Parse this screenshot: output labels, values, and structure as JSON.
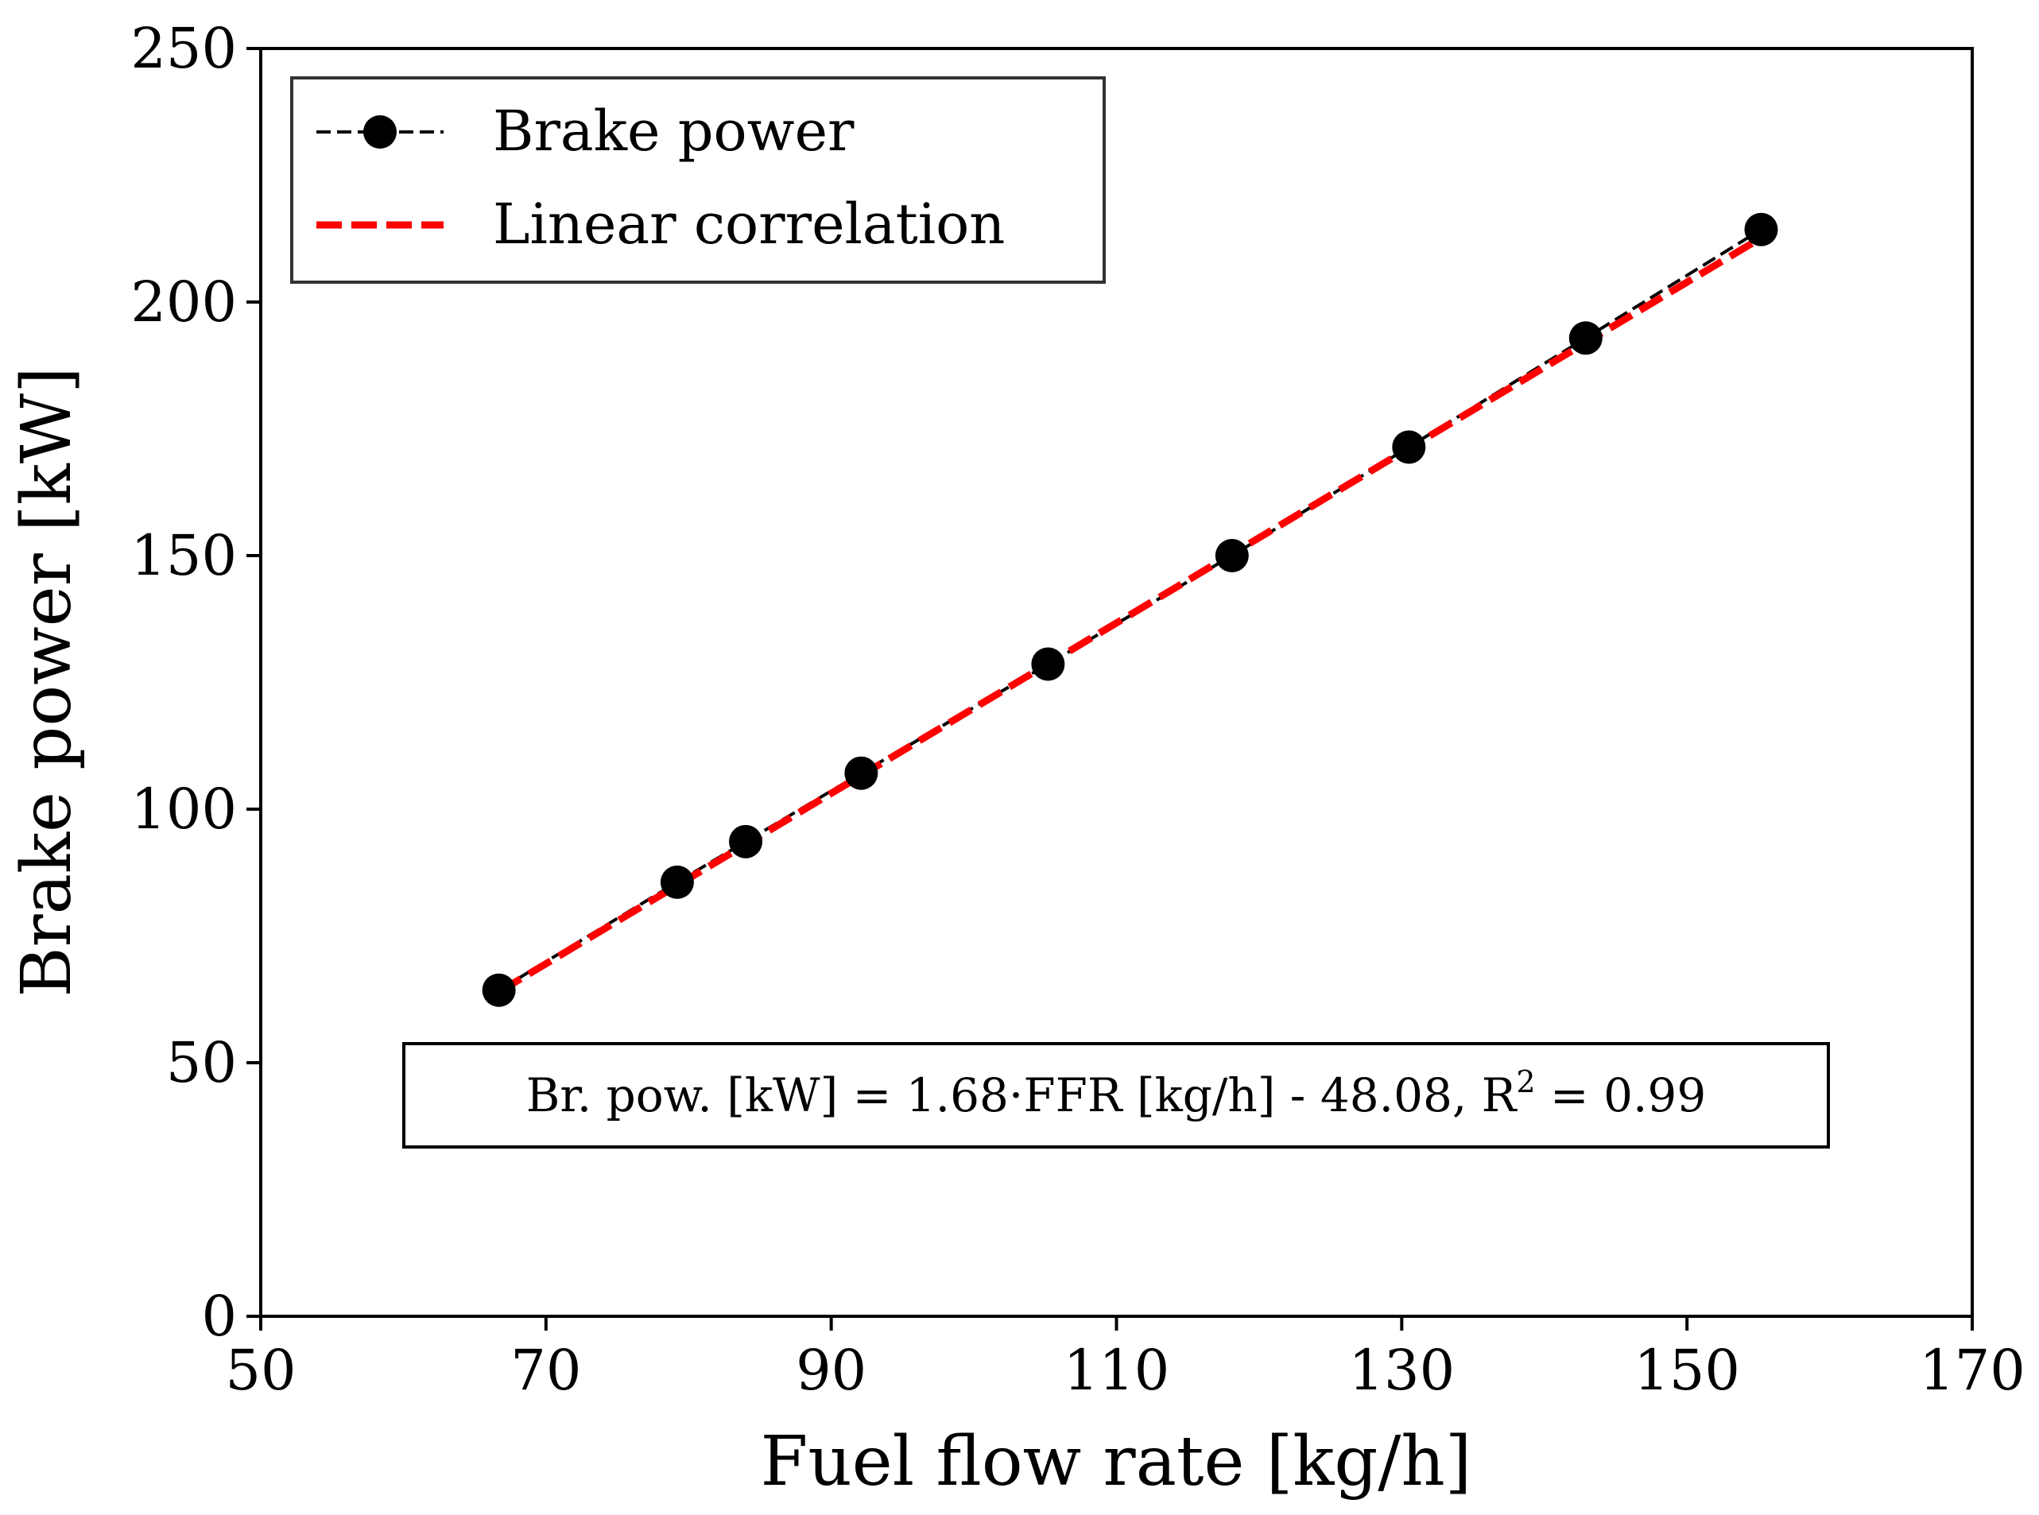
{
  "chart_data": {
    "type": "scatter",
    "title": "",
    "xlabel": "Fuel flow rate [kg/h]",
    "ylabel": "Brake power [kW]",
    "xlim": [
      50,
      170
    ],
    "ylim": [
      0,
      250
    ],
    "x_ticks": [
      50,
      70,
      90,
      110,
      130,
      150,
      170
    ],
    "y_ticks": [
      0,
      50,
      100,
      150,
      200,
      250
    ],
    "grid": false,
    "legend_position": "top-left",
    "series": [
      {
        "name": "Brake power",
        "style": "black dashed line with filled circle markers",
        "color": "#000000",
        "x": [
          66.7,
          79.2,
          84.0,
          92.1,
          105.2,
          118.1,
          130.5,
          142.9,
          155.2
        ],
        "y": [
          64.3,
          85.6,
          93.6,
          107.1,
          128.6,
          150.0,
          171.4,
          192.9,
          214.3
        ]
      },
      {
        "name": "Linear correlation",
        "style": "red dashed line",
        "color": "#ff0000",
        "slope": 1.68,
        "intercept": -48.08,
        "x": [
          66.7,
          155.2
        ]
      }
    ],
    "annotation": {
      "prefix": "Br. pow. [kW] = 1.68·FFR [kg/h] - 48.08, R",
      "superscript": "2",
      "suffix": " = 0.99"
    }
  }
}
